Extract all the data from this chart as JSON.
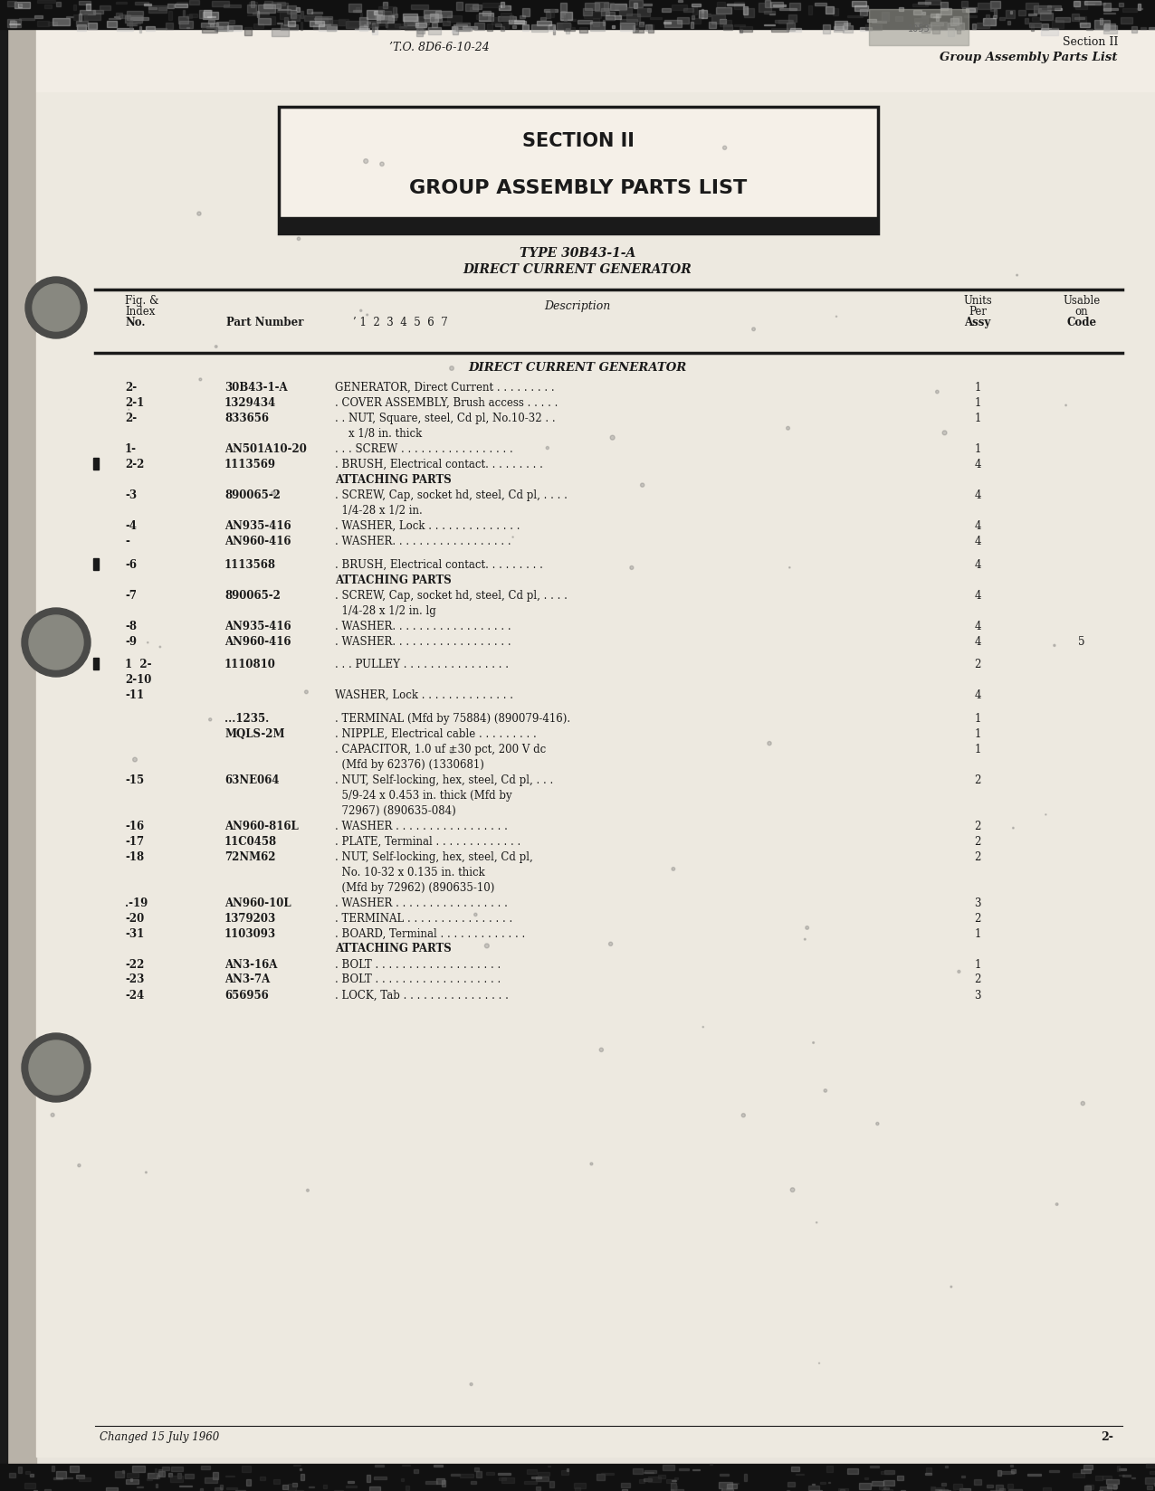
{
  "page_bg": "#e8e4dc",
  "content_bg": "#ede9e0",
  "header_text_left": "’T.O. 8D6-6-10-24",
  "header_text_right_line1": "Section II",
  "header_text_right_line2": "Group Assembly Parts List",
  "section_title_line1": "SECTION II",
  "section_title_line2": "GROUP ASSEMBLY PARTS LIST",
  "subtitle_line1": "TYPE 30B43-1-A",
  "subtitle_line2": "DIRECT CURRENT GENERATOR",
  "section_header": "DIRECT CURRENT GENERATOR",
  "parts": [
    {
      "fig": "2-",
      "part": "30B43-1-A",
      "desc": "GENERATOR, Direct Current . . . . . . . . .",
      "qty": "1",
      "code": "",
      "marker": false,
      "indent": 0
    },
    {
      "fig": "2-1",
      "part": "1329434",
      "desc": ". COVER ASSEMBLY, Brush access . . . . .",
      "qty": "1",
      "code": "",
      "marker": false,
      "indent": 0
    },
    {
      "fig": "2-",
      "part": "833656",
      "desc": ". . NUT, Square, steel, Cd pl, No.10-32 . .",
      "qty": "1",
      "code": "",
      "marker": false,
      "indent": 0,
      "cont": "    x 1/8 in. thick"
    },
    {
      "fig": "1-",
      "part": "AN501A10-20",
      "desc": ". . . SCREW . . . . . . . . . . . . . . . . .",
      "qty": "1",
      "code": "",
      "marker": false,
      "indent": 0
    },
    {
      "fig": "2-2",
      "part": "1113569",
      "desc": ". BRUSH, Electrical contact. . . . . . . . .",
      "qty": "4",
      "code": "",
      "marker": true,
      "indent": 0
    },
    {
      "fig": "",
      "part": "",
      "desc": "ATTACHING PARTS",
      "qty": "",
      "code": "",
      "marker": false,
      "indent": 0
    },
    {
      "fig": "-3",
      "part": "890065-2",
      "desc": ". SCREW, Cap, socket hd, steel, Cd pl, . . . .",
      "qty": "4",
      "code": "",
      "marker": false,
      "indent": 0,
      "cont": "  1/4-28 x 1/2 in."
    },
    {
      "fig": "-4",
      "part": "AN935-416",
      "desc": ". WASHER, Lock . . . . . . . . . . . . . .",
      "qty": "4",
      "code": "",
      "marker": false,
      "indent": 0
    },
    {
      "fig": "-",
      "part": "AN960-416",
      "desc": ". WASHER. . . . . . . . . . . . . . . . . .",
      "qty": "4",
      "code": "",
      "marker": false,
      "indent": 0
    },
    {
      "fig": "",
      "part": "",
      "desc": "",
      "qty": "",
      "code": "",
      "marker": false,
      "indent": 0
    },
    {
      "fig": "-6",
      "part": "1113568",
      "desc": ". BRUSH, Electrical contact. . . . . . . . .",
      "qty": "4",
      "code": "",
      "marker": true,
      "indent": 0
    },
    {
      "fig": "",
      "part": "",
      "desc": "ATTACHING PARTS",
      "qty": "",
      "code": "",
      "marker": false,
      "indent": 0
    },
    {
      "fig": "-7",
      "part": "890065-2",
      "desc": ". SCREW, Cap, socket hd, steel, Cd pl, . . . .",
      "qty": "4",
      "code": "",
      "marker": false,
      "indent": 0,
      "cont": "  1/4-28 x 1/2 in. lg"
    },
    {
      "fig": "-8",
      "part": "AN935-416",
      "desc": ". WASHER. . . . . . . . . . . . . . . . . .",
      "qty": "4",
      "code": "",
      "marker": false,
      "indent": 0
    },
    {
      "fig": "-9",
      "part": "AN960-416",
      "desc": ". WASHER. . . . . . . . . . . . . . . . . .",
      "qty": "4",
      "code": "5",
      "marker": false,
      "indent": 0
    },
    {
      "fig": "",
      "part": "",
      "desc": "",
      "qty": "",
      "code": "",
      "marker": false,
      "indent": 0
    },
    {
      "fig": "1  2-",
      "part": "1110810",
      "desc": ". . . PULLEY . . . . . . . . . . . . . . . .",
      "qty": "2",
      "code": "",
      "marker": true,
      "indent": 0
    },
    {
      "fig": "2-10",
      "part": "",
      "desc": "",
      "qty": "",
      "code": "",
      "marker": false,
      "indent": 0
    },
    {
      "fig": "-11",
      "part": "",
      "desc": "WASHER, Lock . . . . . . . . . . . . . .",
      "qty": "4",
      "code": "",
      "marker": false,
      "indent": 0
    },
    {
      "fig": "",
      "part": "",
      "desc": "",
      "qty": "",
      "code": "",
      "marker": false,
      "indent": 0
    },
    {
      "fig": "",
      "part": "...1235.",
      "desc": ". TERMINAL (Mfd by 75884) (890079-416).",
      "qty": "1",
      "code": "",
      "marker": false,
      "indent": 0
    },
    {
      "fig": "",
      "part": "MQLS-2M",
      "desc": ". NIPPLE, Electrical cable . . . . . . . . .",
      "qty": "1",
      "code": "",
      "marker": false,
      "indent": 0
    },
    {
      "fig": "",
      "part": "",
      "desc": ". CAPACITOR, 1.0 uf ±30 pct, 200 V dc",
      "qty": "1",
      "code": "",
      "marker": false,
      "indent": 0,
      "cont": "  (Mfd by 62376) (1330681)"
    },
    {
      "fig": "-15",
      "part": "63NE064",
      "desc": ". NUT, Self-locking, hex, steel, Cd pl, . . .",
      "qty": "2",
      "code": "",
      "marker": false,
      "indent": 0,
      "cont2": "  5/9-24 x 0.453 in. thick (Mfd by\n  72967) (890635-084)"
    },
    {
      "fig": "-16",
      "part": "AN960-816L",
      "desc": ". WASHER . . . . . . . . . . . . . . . . .",
      "qty": "2",
      "code": "",
      "marker": false,
      "indent": 0
    },
    {
      "fig": "-17",
      "part": "11C0458",
      "desc": ". PLATE, Terminal . . . . . . . . . . . . .",
      "qty": "2",
      "code": "",
      "marker": false,
      "indent": 0
    },
    {
      "fig": "-18",
      "part": "72NM62",
      "desc": ". NUT, Self-locking, hex, steel, Cd pl,",
      "qty": "2",
      "code": "",
      "marker": false,
      "indent": 0,
      "cont2": "  No. 10-32 x 0.135 in. thick\n  (Mfd by 72962) (890635-10)"
    },
    {
      "fig": ".-19",
      "part": "AN960-10L",
      "desc": ". WASHER . . . . . . . . . . . . . . . . .",
      "qty": "3",
      "code": "",
      "marker": false,
      "indent": 0
    },
    {
      "fig": "-20",
      "part": "1379203",
      "desc": ". TERMINAL . . . . . . . . . . . . . . . .",
      "qty": "2",
      "code": "",
      "marker": false,
      "indent": 0
    },
    {
      "fig": "-31",
      "part": "1103093",
      "desc": ". BOARD, Terminal . . . . . . . . . . . . .",
      "qty": "1",
      "code": "",
      "marker": false,
      "indent": 0
    },
    {
      "fig": "",
      "part": "",
      "desc": "ATTACHING PARTS",
      "qty": "",
      "code": "",
      "marker": false,
      "indent": 0
    },
    {
      "fig": "-22",
      "part": "AN3-16A",
      "desc": ". BOLT . . . . . . . . . . . . . . . . . . .",
      "qty": "1",
      "code": "",
      "marker": false,
      "indent": 0
    },
    {
      "fig": "-23",
      "part": "AN3-7A",
      "desc": ". BOLT . . . . . . . . . . . . . . . . . . .",
      "qty": "2",
      "code": "",
      "marker": false,
      "indent": 0
    },
    {
      "fig": "-24",
      "part": "656956",
      "desc": ". LOCK, Tab . . . . . . . . . . . . . . . .",
      "qty": "3",
      "code": "",
      "marker": false,
      "indent": 0
    }
  ],
  "footer_left": "Changed 15 July 1960",
  "footer_right": "2-"
}
